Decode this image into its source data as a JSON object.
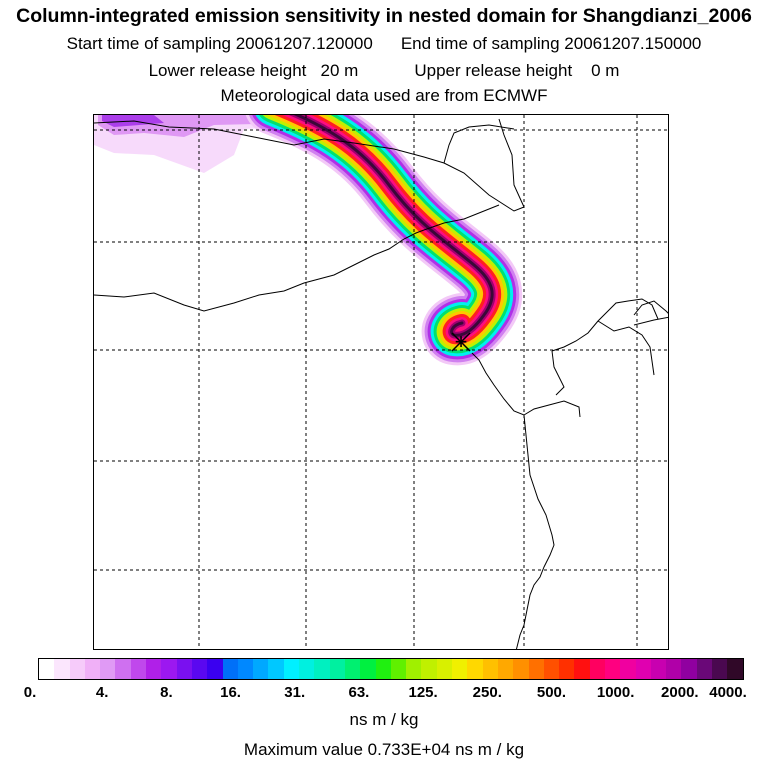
{
  "header": {
    "title": "Column-integrated emission sensitivity in nested domain for Shangdianzi_2006",
    "start_label": "Start time of sampling 20061207.120000",
    "end_label": "End time of sampling 20061207.150000",
    "lower_release": "Lower release height   20 m",
    "upper_release": "Upper release height    0 m",
    "met_source": "Meteorological data used are from ECMWF"
  },
  "map": {
    "receptor_marker": "+",
    "plume_colors": [
      "#f3c9f7",
      "#d080f0",
      "#b030e8",
      "#00f0f0",
      "#00e070",
      "#c0f000",
      "#ffc800",
      "#ff2020",
      "#ff0c80",
      "#a00070",
      "#3a0838"
    ]
  },
  "legend": {
    "tick_labels": [
      "0.",
      "4.",
      "8.",
      "16.",
      "31.",
      "63.",
      "125.",
      "250.",
      "500.",
      "1000.",
      "2000.",
      "4000."
    ],
    "colors": [
      "#ffffff",
      "#fbe6fd",
      "#f6cbfa",
      "#f0b0f7",
      "#e09af5",
      "#cf70f0",
      "#c048ec",
      "#b020e8",
      "#9c18f0",
      "#7a10f0",
      "#5a08f0",
      "#3a00f0",
      "#0070f8",
      "#0088ff",
      "#00a8ff",
      "#00c8ff",
      "#00f0ff",
      "#00f0e0",
      "#00f0c0",
      "#00f0a0",
      "#00f070",
      "#00f040",
      "#20f010",
      "#60f000",
      "#a0f000",
      "#c0f000",
      "#d8f000",
      "#f0f000",
      "#ffd800",
      "#ffc000",
      "#ffa800",
      "#ff9000",
      "#ff7000",
      "#ff5000",
      "#ff3000",
      "#ff1010",
      "#ff0060",
      "#ff0080",
      "#f000a0",
      "#e000b0",
      "#c800b0",
      "#b000a8",
      "#9000a0",
      "#6a0878",
      "#4a0850",
      "#300828"
    ],
    "unit": "ns m / kg",
    "max_value": "Maximum value  0.733E+04 ns m / kg"
  }
}
